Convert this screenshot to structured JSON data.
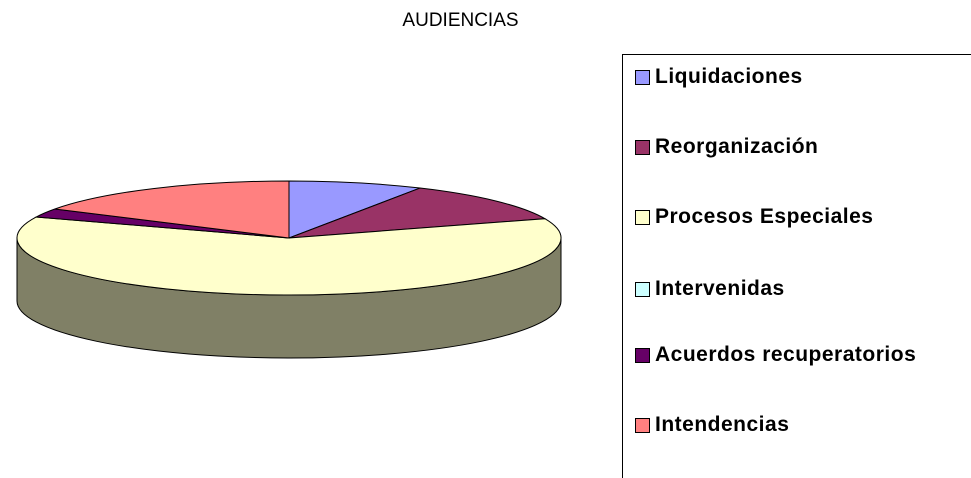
{
  "chart_data": {
    "type": "pie3d",
    "title": "AUDIENCIAS",
    "categories": [
      "Liquidaciones",
      "Reorganización",
      "Procesos Especiales",
      "Intervenidas",
      "Acuerdos recuperatorios",
      "Intendencias"
    ],
    "values": [
      8,
      11.5,
      61.5,
      0,
      2.5,
      16.5
    ],
    "colors": [
      "#9999ff",
      "#993366",
      "#ffffcc",
      "#ccffff",
      "#660066",
      "#ff8080"
    ],
    "legend": "right"
  }
}
